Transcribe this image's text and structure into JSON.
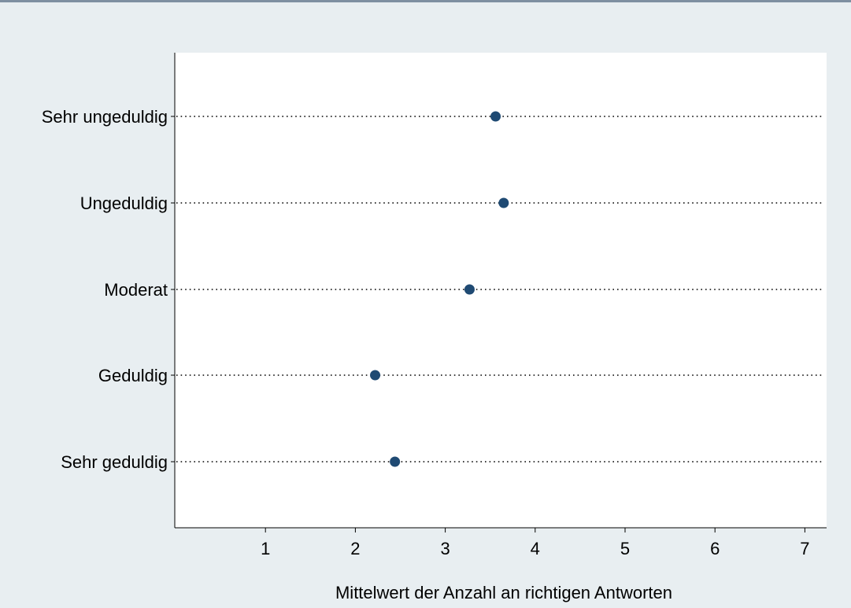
{
  "chart_data": {
    "type": "scatter",
    "orientation": "horizontal-dot",
    "categories": [
      "Sehr ungeduldig",
      "Ungeduldig",
      "Moderat",
      "Geduldig",
      "Sehr geduldig"
    ],
    "values": [
      3.56,
      3.65,
      3.27,
      2.22,
      2.44
    ],
    "x_ticks": [
      1,
      2,
      3,
      4,
      5,
      6,
      7
    ],
    "xlim": [
      0,
      7.25
    ],
    "xlabel": "Mittelwert der Anzahl an richtigen Antworten",
    "ylabel": "",
    "title": "",
    "grid": "dotted-category-lines",
    "colors": {
      "marker": "#1f4a73",
      "background": "#e8eef1",
      "plot_area": "#ffffff",
      "top_rule": "#7e8fa1"
    }
  }
}
